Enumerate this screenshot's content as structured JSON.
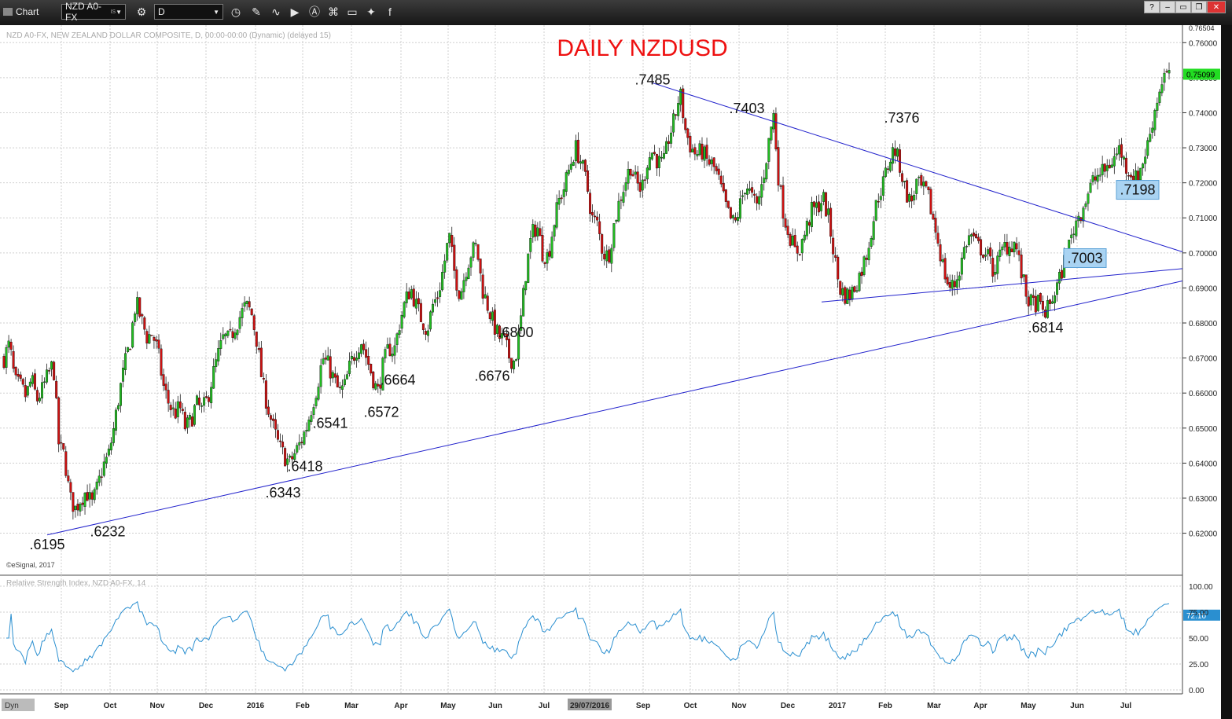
{
  "toolbar": {
    "window_label": "Chart",
    "symbol": "NZD A0-FX",
    "symbol_sup": "IS",
    "interval": "D"
  },
  "chart_data": {
    "type": "candlestick",
    "title": "DAILY NZDUSD",
    "subtitle": "NZD A0-FX, NEW ZEALAND DOLLAR COMPOSITE, D, 00:00-00:00 (Dynamic) (delayed 15)",
    "copyright": "©eSignal, 2017",
    "ylim": [
      0.6125,
      0.765
    ],
    "y_ticks": [
      "0.62000",
      "0.63000",
      "0.64000",
      "0.65000",
      "0.66000",
      "0.67000",
      "0.68000",
      "0.69000",
      "0.70000",
      "0.71000",
      "0.72000",
      "0.73000",
      "0.74000",
      "0.75000",
      "0.76000"
    ],
    "y_top_label": "0.76504",
    "last_price": "0.75099",
    "x_labels": [
      "Sep",
      "Oct",
      "Nov",
      "Dec",
      "2016",
      "Feb",
      "Mar",
      "Apr",
      "May",
      "Jun",
      "Jul",
      "29/07/2016",
      "Sep",
      "Oct",
      "Nov",
      "Dec",
      "2017",
      "Feb",
      "Mar",
      "Apr",
      "May",
      "Jun",
      "Jul"
    ],
    "price_path": [
      [
        0.67,
        0.674,
        0.663,
        0.662,
        0.659,
        0.664,
        0.658,
        0.661,
        0.665,
        0.6685,
        0.645,
        0.642,
        0.63,
        0.627,
        0.63,
        0.632,
        0.628,
        0.633,
        0.639,
        0.642,
        0.65,
        0.66,
        0.668,
        0.675,
        0.686,
        0.681,
        0.676,
        0.677,
        0.672,
        0.662,
        0.657,
        0.654,
        0.656,
        0.65,
        0.652,
        0.657,
        0.655,
        0.658,
        0.665,
        0.671,
        0.676,
        0.675,
        0.679,
        0.682,
        0.685,
        0.683,
        0.675,
        0.663,
        0.656,
        0.65,
        0.645,
        0.642,
        0.64,
        0.643,
        0.646,
        0.65,
        0.656,
        0.662,
        0.67,
        0.668,
        0.664,
        0.66,
        0.662,
        0.668,
        0.672,
        0.675,
        0.67,
        0.665,
        0.66,
        0.668,
        0.673,
        0.672,
        0.68,
        0.686,
        0.69,
        0.685,
        0.681,
        0.678,
        0.685,
        0.688,
        0.696,
        0.705,
        0.694,
        0.688,
        0.695,
        0.7,
        0.702,
        0.69,
        0.685,
        0.68,
        0.676,
        0.675,
        0.67,
        0.669,
        0.68,
        0.695,
        0.705,
        0.708,
        0.7,
        0.699,
        0.708,
        0.715,
        0.719,
        0.725,
        0.73,
        0.726,
        0.72,
        0.71,
        0.708,
        0.7,
        0.699,
        0.708,
        0.715,
        0.72,
        0.725,
        0.72,
        0.718,
        0.726,
        0.729,
        0.726,
        0.725,
        0.733,
        0.738,
        0.746,
        0.735,
        0.73,
        0.728,
        0.729,
        0.726,
        0.725,
        0.721,
        0.715,
        0.71,
        0.708,
        0.714,
        0.72,
        0.716,
        0.713,
        0.72,
        0.73,
        0.74,
        0.72,
        0.71,
        0.705,
        0.7,
        0.702,
        0.707,
        0.712,
        0.713,
        0.716,
        0.71,
        0.7,
        0.69,
        0.688,
        0.688,
        0.691,
        0.695,
        0.7,
        0.708,
        0.716,
        0.72,
        0.726,
        0.73,
        0.725,
        0.718,
        0.714,
        0.72,
        0.718,
        0.717,
        0.71,
        0.703,
        0.695,
        0.69,
        0.691,
        0.696,
        0.703,
        0.705,
        0.702,
        0.701,
        0.699,
        0.695,
        0.698,
        0.702,
        0.702,
        0.703,
        0.695,
        0.688,
        0.685,
        0.686,
        0.683,
        0.684,
        0.688,
        0.692,
        0.698,
        0.703,
        0.709,
        0.712,
        0.716,
        0.72,
        0.722,
        0.723,
        0.725,
        0.727,
        0.73,
        0.725,
        0.723,
        0.721,
        0.725,
        0.73,
        0.738,
        0.745,
        0.751,
        0.75
      ]
    ],
    "annotations": [
      ".6195",
      ".6232",
      ".6343",
      ".6418",
      ".6541",
      ".6572",
      ".6664",
      ".6676",
      ".6800",
      ".7485",
      ".7403",
      ".7376",
      ".7198",
      ".7003",
      ".6814"
    ],
    "rsi": {
      "label": "Relative Strength Index, NZD A0-FX, 14",
      "ylim": [
        0,
        100
      ],
      "ticks": [
        "100.00",
        "75.00",
        "50.00",
        "25.00",
        "0.00"
      ],
      "last_value": "72.10"
    },
    "colors": {
      "up": "#22bb22",
      "down": "#cc1111",
      "trend": "#2222cc",
      "rsi": "#2a8fd0",
      "title": "#ee1111",
      "box": "#a9d3f2"
    },
    "grid": true,
    "footer_label": "Dyn"
  }
}
